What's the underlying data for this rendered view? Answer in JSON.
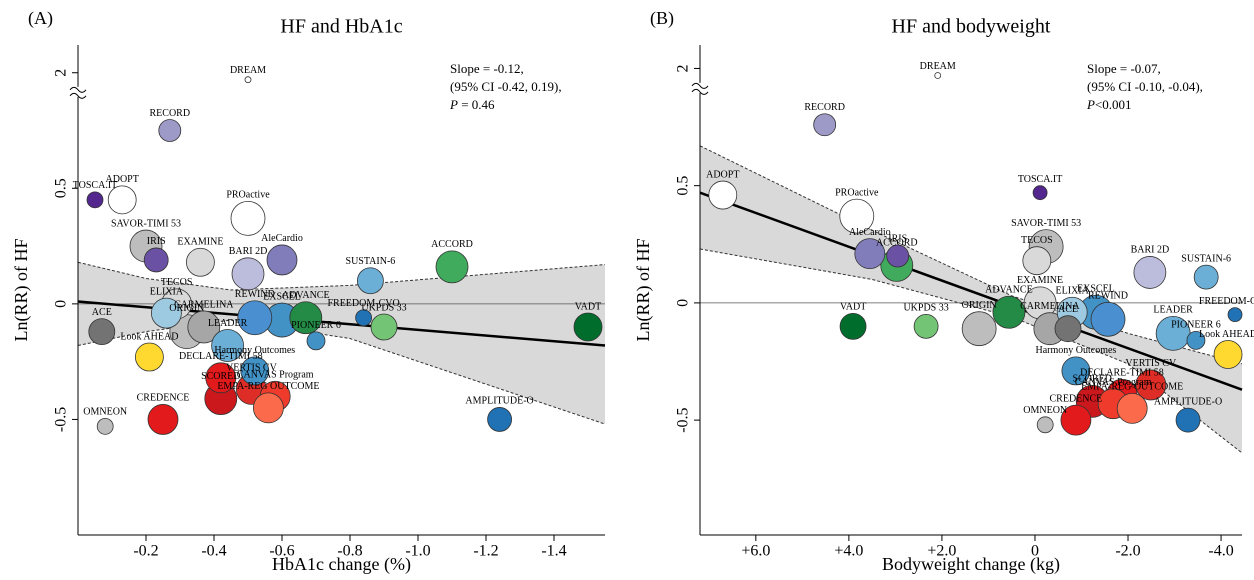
{
  "chart_data": [
    {
      "type": "bubble",
      "panel": "(A)",
      "title": "HF and HbA1c",
      "x_label": "HbA1c change (%)",
      "y_label": "Ln(RR) of HF",
      "xlim": [
        0,
        -1.55
      ],
      "ylim": [
        -1.0,
        2.12
      ],
      "y_break": [
        0.9,
        1.9
      ],
      "xticks": [
        -0.2,
        -0.4,
        -0.6,
        -0.8,
        {
          "value": -1.0,
          "label": "-1.0"
        },
        -1.2,
        -1.4
      ],
      "yticks": [
        -0.5,
        0,
        0.5,
        2
      ],
      "stats": [
        "Slope = -0.12,",
        "(95% CI -0.42, 0.19),"
      ],
      "p_symbol": "P",
      "p_text": " = 0.46",
      "fit": {
        "x": [
          0,
          -1.55
        ],
        "y": [
          0.01,
          -0.18
        ]
      },
      "ci": {
        "x": [
          0,
          -0.2,
          -0.45,
          -0.8,
          -1.55
        ],
        "upper": [
          0.18,
          0.11,
          0.06,
          0.08,
          0.17
        ],
        "lower": [
          -0.18,
          -0.12,
          -0.07,
          -0.15,
          -0.52
        ]
      },
      "points": [
        {
          "name": "DREAM",
          "x": -0.5,
          "y": 1.97,
          "size": 3,
          "color": "#ffffff"
        },
        {
          "name": "RECORD",
          "x": -0.27,
          "y": 0.75,
          "size": 11,
          "color": "#9e9ac8"
        },
        {
          "name": "TOSCA.IT",
          "x": -0.05,
          "y": 0.45,
          "size": 8,
          "color": "#54278f"
        },
        {
          "name": "ADOPT",
          "x": -0.13,
          "y": 0.45,
          "size": 14,
          "color": "#ffffff"
        },
        {
          "name": "SAVOR-TIMI 53",
          "x": -0.2,
          "y": 0.25,
          "size": 16,
          "color": "#bdbdbd"
        },
        {
          "name": "IRIS",
          "x": -0.23,
          "y": 0.19,
          "size": 12,
          "color": "#6a51a3"
        },
        {
          "name": "EXAMINE",
          "x": -0.36,
          "y": 0.18,
          "size": 14,
          "color": "#d9d9d9"
        },
        {
          "name": "PROactive",
          "x": -0.5,
          "y": 0.37,
          "size": 17,
          "color": "#ffffff"
        },
        {
          "name": "BARI 2D",
          "x": -0.5,
          "y": 0.13,
          "size": 16,
          "color": "#bcbddc"
        },
        {
          "name": "AleCardio",
          "x": -0.6,
          "y": 0.19,
          "size": 15,
          "color": "#807dba"
        },
        {
          "name": "TECOS",
          "x": -0.29,
          "y": 0.0,
          "size": 15,
          "color": "#d9d9d9"
        },
        {
          "name": "ACCORD",
          "x": -1.1,
          "y": 0.16,
          "size": 16,
          "color": "#41ab5d"
        },
        {
          "name": "SUSTAIN-6",
          "x": -0.86,
          "y": 0.1,
          "size": 13,
          "color": "#6baed6"
        },
        {
          "name": "EXSCEL",
          "x": -0.6,
          "y": -0.07,
          "size": 17,
          "color": "#4292c6"
        },
        {
          "name": "ADVANCE",
          "x": -0.67,
          "y": -0.06,
          "size": 16,
          "color": "#238b45"
        },
        {
          "name": "FREEDOM-CVO",
          "x": -0.84,
          "y": -0.06,
          "size": 8,
          "color": "#2171b5"
        },
        {
          "name": "UKPDS 33",
          "x": -0.9,
          "y": -0.1,
          "size": 13,
          "color": "#74c476"
        },
        {
          "name": "VADT",
          "x": -1.5,
          "y": -0.1,
          "size": 14,
          "color": "#006d2c"
        },
        {
          "name": "PIONEER 6",
          "x": -0.7,
          "y": -0.16,
          "size": 9,
          "color": "#4292c6"
        },
        {
          "name": "REWIND",
          "x": -0.52,
          "y": -0.06,
          "size": 17,
          "color": "#4a90d0"
        },
        {
          "name": "CARMELINA",
          "x": -0.37,
          "y": -0.1,
          "size": 16,
          "color": "#a6a6a6"
        },
        {
          "name": "ELIXIA",
          "x": -0.26,
          "y": -0.04,
          "size": 15,
          "color": "#9ecae1"
        },
        {
          "name": "ORIGIN",
          "x": -0.32,
          "y": -0.12,
          "size": 17,
          "color": "#bdbdbd"
        },
        {
          "name": "ACE",
          "x": -0.07,
          "y": -0.12,
          "size": 13,
          "color": "#737373"
        },
        {
          "name": "Look AHEAD",
          "x": -0.21,
          "y": -0.23,
          "size": 14,
          "color": "#ffd92f"
        },
        {
          "name": "LEADER",
          "x": -0.44,
          "y": -0.18,
          "size": 16,
          "color": "#6baed6"
        },
        {
          "name": "Harmony Outcomes",
          "x": -0.52,
          "y": -0.29,
          "size": 14,
          "color": "#4292c6"
        },
        {
          "name": "DECLARE-TIMI 58",
          "x": -0.42,
          "y": -0.32,
          "size": 15,
          "color": "#e31a1c"
        },
        {
          "name": "SCORED",
          "x": -0.42,
          "y": -0.41,
          "size": 16,
          "color": "#cb181d"
        },
        {
          "name": "VERTIS CV",
          "x": -0.51,
          "y": -0.37,
          "size": 15,
          "color": "#de2d26"
        },
        {
          "name": "CANVAS Program",
          "x": -0.58,
          "y": -0.4,
          "size": 15,
          "color": "#ef3b2c"
        },
        {
          "name": "EMPA-REG OUTCOME",
          "x": -0.56,
          "y": -0.45,
          "size": 15,
          "color": "#fb6a4a"
        },
        {
          "name": "CREDENCE",
          "x": -0.25,
          "y": -0.5,
          "size": 15,
          "color": "#e31a1c"
        },
        {
          "name": "OMNEON",
          "x": -0.08,
          "y": -0.53,
          "size": 8,
          "color": "#bdbdbd"
        },
        {
          "name": "AMPLITUDE-O",
          "x": -1.24,
          "y": -0.5,
          "size": 12,
          "color": "#2171b5"
        }
      ]
    },
    {
      "type": "bubble",
      "panel": "(B)",
      "title": "HF and bodyweight",
      "x_label": "Bodyweight change (kg)",
      "y_label": "Ln(RR) of HF",
      "xlim": [
        7.2,
        -4.45
      ],
      "ylim": [
        -0.99,
        2.1
      ],
      "y_break": [
        0.9,
        1.9
      ],
      "xticks": [
        {
          "value": 6,
          "label": "+6.0"
        },
        {
          "value": 4,
          "label": "+4.0"
        },
        {
          "value": 2,
          "label": "+2.0"
        },
        0,
        {
          "value": -2,
          "label": "-2.0"
        },
        {
          "value": -4,
          "label": "-4.0"
        }
      ],
      "yticks": [
        -0.5,
        0,
        0.5,
        2
      ],
      "stats": [
        "Slope = -0.07,",
        "(95% CI -0.10, -0.04),"
      ],
      "p_symbol": "P",
      "p_text": "<0.001",
      "fit": {
        "x": [
          7.2,
          -4.45
        ],
        "y": [
          0.47,
          -0.37
        ]
      },
      "ci": {
        "x": [
          7.2,
          3.5,
          0.5,
          -2.0,
          -4.45
        ],
        "upper": [
          0.67,
          0.31,
          0.03,
          -0.13,
          -0.26
        ],
        "lower": [
          0.23,
          0.1,
          -0.06,
          -0.26,
          -0.64
        ]
      },
      "points": [
        {
          "name": "DREAM",
          "x": 2.09,
          "y": 1.97,
          "size": 3,
          "color": "#ffffff"
        },
        {
          "name": "RECORD",
          "x": 4.52,
          "y": 0.76,
          "size": 11,
          "color": "#9e9ac8"
        },
        {
          "name": "ADOPT",
          "x": 6.71,
          "y": 0.46,
          "size": 14,
          "color": "#ffffff"
        },
        {
          "name": "TOSCA.IT",
          "x": -0.11,
          "y": 0.47,
          "size": 7,
          "color": "#54278f"
        },
        {
          "name": "PROactive",
          "x": 3.83,
          "y": 0.37,
          "size": 17,
          "color": "#ffffff"
        },
        {
          "name": "AleCardio",
          "x": 3.55,
          "y": 0.21,
          "size": 15,
          "color": "#807dba"
        },
        {
          "name": "ACCORD",
          "x": 2.97,
          "y": 0.16,
          "size": 16,
          "color": "#41ab5d"
        },
        {
          "name": "IRIS",
          "x": 2.95,
          "y": 0.2,
          "size": 11,
          "color": "#6a51a3"
        },
        {
          "name": "SAVOR-TIMI 53",
          "x": -0.24,
          "y": 0.24,
          "size": 17,
          "color": "#bdbdbd"
        },
        {
          "name": "TECOS",
          "x": -0.04,
          "y": 0.18,
          "size": 14,
          "color": "#d9d9d9"
        },
        {
          "name": "EXAMINE",
          "x": -0.11,
          "y": 0.0,
          "size": 16,
          "color": "#d9d9d9"
        },
        {
          "name": "BARI 2D",
          "x": -2.47,
          "y": 0.13,
          "size": 16,
          "color": "#bcbddc"
        },
        {
          "name": "SUSTAIN-6",
          "x": -3.68,
          "y": 0.11,
          "size": 12,
          "color": "#6baed6"
        },
        {
          "name": "FREEDOM-CVO",
          "x": -4.3,
          "y": -0.05,
          "size": 7,
          "color": "#2171b5"
        },
        {
          "name": "ELIXIA",
          "x": -0.8,
          "y": -0.04,
          "size": 15,
          "color": "#9ecae1"
        },
        {
          "name": "EXSCEL",
          "x": -1.31,
          "y": -0.04,
          "size": 17,
          "color": "#4292c6"
        },
        {
          "name": "REWIND",
          "x": -1.57,
          "y": -0.07,
          "size": 17,
          "color": "#4a90d0"
        },
        {
          "name": "LEADER",
          "x": -2.97,
          "y": -0.13,
          "size": 17,
          "color": "#6baed6"
        },
        {
          "name": "PIONEER 6",
          "x": -3.46,
          "y": -0.16,
          "size": 9,
          "color": "#4292c6"
        },
        {
          "name": "Look AHEAD",
          "x": -4.15,
          "y": -0.22,
          "size": 14,
          "color": "#ffd92f"
        },
        {
          "name": "VADT",
          "x": 3.91,
          "y": -0.1,
          "size": 13,
          "color": "#006d2c"
        },
        {
          "name": "UKPDS 33",
          "x": 2.34,
          "y": -0.1,
          "size": 12,
          "color": "#74c476"
        },
        {
          "name": "ORIGIN",
          "x": 1.2,
          "y": -0.11,
          "size": 17,
          "color": "#bdbdbd"
        },
        {
          "name": "ADVANCE",
          "x": 0.56,
          "y": -0.04,
          "size": 16,
          "color": "#238b45"
        },
        {
          "name": "CARMELINA",
          "x": -0.32,
          "y": -0.11,
          "size": 16,
          "color": "#a6a6a6"
        },
        {
          "name": "ACE",
          "x": -0.71,
          "y": -0.11,
          "size": 13,
          "color": "#737373"
        },
        {
          "name": "Harmony Outcomes",
          "x": -0.88,
          "y": -0.29,
          "size": 14,
          "color": "#4292c6"
        },
        {
          "name": "DECLARE-TIMI 58",
          "x": -1.87,
          "y": -0.39,
          "size": 15,
          "color": "#e31a1c"
        },
        {
          "name": "VERTIS CV",
          "x": -2.49,
          "y": -0.35,
          "size": 15,
          "color": "#de2d26"
        },
        {
          "name": "CREDENCE",
          "x": -0.88,
          "y": -0.5,
          "size": 15,
          "color": "#e31a1c"
        },
        {
          "name": "OMNEON",
          "x": -0.22,
          "y": -0.52,
          "size": 8,
          "color": "#bdbdbd"
        },
        {
          "name": "SCORED",
          "x": -1.23,
          "y": -0.42,
          "size": 16,
          "color": "#cb181d"
        },
        {
          "name": "CANVAS Program",
          "x": -1.68,
          "y": -0.43,
          "size": 15,
          "color": "#ef3b2c"
        },
        {
          "name": "EMPA-REG OUTCOME",
          "x": -2.09,
          "y": -0.45,
          "size": 15,
          "color": "#fb6a4a"
        },
        {
          "name": "AMPLITUDE-O",
          "x": -3.29,
          "y": -0.5,
          "size": 12,
          "color": "#2171b5"
        }
      ]
    }
  ]
}
